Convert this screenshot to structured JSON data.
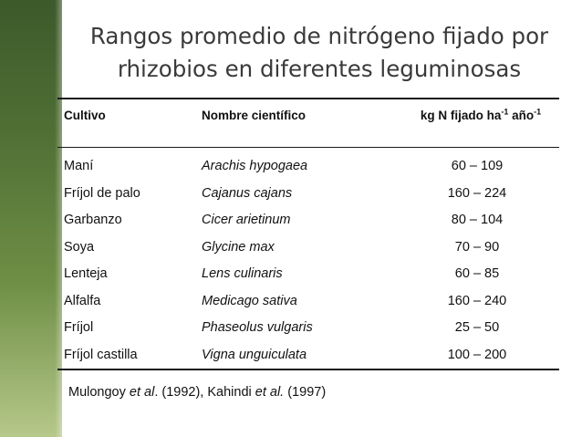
{
  "title": {
    "line1": "Rangos promedio de nitrógeno fijado por",
    "line2": "rhizobios en diferentes leguminosas"
  },
  "table": {
    "headers": {
      "crop": "Cultivo",
      "scientific_name": "Nombre científico",
      "fixed_base": "kg N fijado ha",
      "sup1": "-1",
      "year": " año",
      "sup2": "-1"
    },
    "rows": [
      {
        "crop": "Maní",
        "scientific": "Arachis hypogaea",
        "range": "60 – 109"
      },
      {
        "crop": "Fríjol de palo",
        "scientific": "Cajanus cajans",
        "range": "160 – 224"
      },
      {
        "crop": "Garbanzo",
        "scientific": "Cicer arietinum",
        "range": "80 – 104"
      },
      {
        "crop": "Soya",
        "scientific": "Glycine max",
        "range": "70 – 90"
      },
      {
        "crop": "Lenteja",
        "scientific": "Lens culinaris",
        "range": "60 – 85"
      },
      {
        "crop": "Alfalfa",
        "scientific": "Medicago sativa",
        "range": "160 – 240"
      },
      {
        "crop": "Fríjol",
        "scientific": "Phaseolus vulgaris",
        "range": "25 – 50"
      },
      {
        "crop": "Fríjol castilla",
        "scientific": "Vigna unguiculata",
        "range": "100 – 200"
      }
    ]
  },
  "citation": {
    "part1": "Mulongoy ",
    "etal1": "et al",
    "part2": ". (1992), Kahindi ",
    "etal2": "et al.",
    "part3": " (1997)"
  },
  "colors": {
    "sidebar_dark": "#3c5a2a",
    "sidebar_light": "#b6c88a",
    "title_text": "#3a3a3a"
  }
}
